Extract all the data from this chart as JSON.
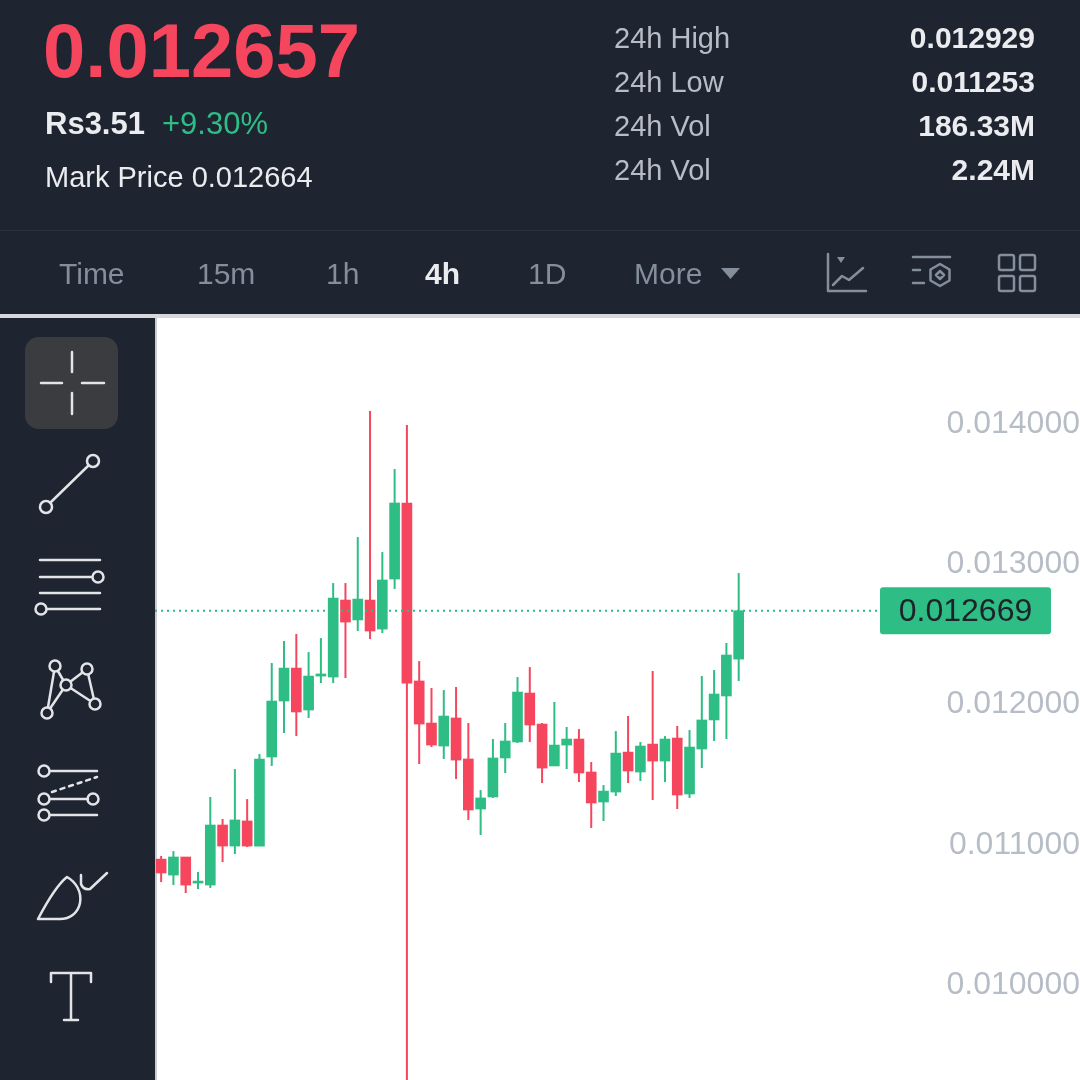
{
  "chart_data": {
    "type": "candlestick",
    "title": "0.012657",
    "annotations": [
      "Rs3.51",
      "+9.30%",
      "Mark Price 0.012664",
      "24h High",
      "0.012929",
      "24h Low",
      "0.011253",
      "24h Vol",
      "186.33M",
      "24h Vol",
      "2.24M",
      "Time",
      "15m",
      "1h",
      "4h",
      "1D",
      "More"
    ],
    "categories": [
      null,
      null,
      null,
      null,
      null,
      null,
      null,
      null,
      null,
      null,
      null,
      null,
      null,
      null,
      null,
      null,
      null,
      null,
      null,
      null,
      null,
      null,
      null,
      null,
      null,
      null,
      null,
      null,
      null,
      null,
      null,
      null,
      null,
      null,
      null,
      null,
      null,
      null,
      null,
      null,
      null,
      null,
      null,
      null,
      null,
      null,
      null,
      null,
      null,
      null,
      null,
      null,
      null,
      null,
      null,
      null,
      null,
      null,
      null
    ],
    "ohlc": [
      [
        0.010898,
        0.01092,
        0.010734,
        0.010799
      ],
      [
        0.010784,
        0.010955,
        0.010713,
        0.010913
      ],
      [
        0.010913,
        0.010913,
        0.010656,
        0.010713
      ],
      [
        0.010727,
        0.010806,
        0.010684,
        0.010734
      ],
      [
        0.010713,
        0.011341,
        0.010692,
        0.011141
      ],
      [
        0.011141,
        0.011184,
        0.010877,
        0.010991
      ],
      [
        0.010991,
        0.01154,
        0.010934,
        0.011177
      ],
      [
        0.01117,
        0.011326,
        0.010984,
        0.010991
      ],
      [
        0.010991,
        0.011647,
        0.010991,
        0.011612
      ],
      [
        0.011626,
        0.012296,
        0.011562,
        0.012025
      ],
      [
        0.012025,
        0.012453,
        0.011797,
        0.01226
      ],
      [
        0.01226,
        0.012503,
        0.011775,
        0.011947
      ],
      [
        0.011961,
        0.012374,
        0.011904,
        0.012203
      ],
      [
        0.012203,
        0.012474,
        0.012153,
        0.012218
      ],
      [
        0.012196,
        0.012866,
        0.012153,
        0.012759
      ],
      [
        0.012745,
        0.012866,
        0.012189,
        0.012588
      ],
      [
        0.012603,
        0.013194,
        0.012524,
        0.012752
      ],
      [
        0.012745,
        0.014093,
        0.012467,
        0.012524
      ],
      [
        0.012538,
        0.013087,
        0.01251,
        0.012888
      ],
      [
        0.012895,
        0.013679,
        0.012824,
        0.013437
      ],
      [
        0.013437,
        0.013993,
        0.009323,
        0.012153
      ],
      [
        0.012168,
        0.01231,
        0.011576,
        0.011861
      ],
      [
        0.011868,
        0.012118,
        0.011697,
        0.011711
      ],
      [
        0.011704,
        0.012103,
        0.011612,
        0.011918
      ],
      [
        0.011904,
        0.012125,
        0.011469,
        0.011604
      ],
      [
        0.011612,
        0.011868,
        0.011177,
        0.011248
      ],
      [
        0.011255,
        0.01139,
        0.01107,
        0.011334
      ],
      [
        0.011341,
        0.011754,
        0.011334,
        0.011619
      ],
      [
        0.011619,
        0.011868,
        0.011512,
        0.01174
      ],
      [
        0.011733,
        0.012196,
        0.011726,
        0.012089
      ],
      [
        0.012082,
        0.012267,
        0.011733,
        0.011854
      ],
      [
        0.011861,
        0.011868,
        0.01144,
        0.011547
      ],
      [
        0.011562,
        0.012018,
        0.011562,
        0.011711
      ],
      [
        0.011711,
        0.01184,
        0.01154,
        0.011754
      ],
      [
        0.011754,
        0.011825,
        0.011447,
        0.011512
      ],
      [
        0.011519,
        0.01159,
        0.01112,
        0.011298
      ],
      [
        0.011305,
        0.011426,
        0.01117,
        0.011383
      ],
      [
        0.011376,
        0.011811,
        0.011348,
        0.011654
      ],
      [
        0.011661,
        0.011918,
        0.01144,
        0.011526
      ],
      [
        0.011519,
        0.011733,
        0.011455,
        0.011704
      ],
      [
        0.011718,
        0.012239,
        0.011319,
        0.011597
      ],
      [
        0.011597,
        0.011775,
        0.011447,
        0.011754
      ],
      [
        0.011761,
        0.011847,
        0.011255,
        0.011355
      ],
      [
        0.011362,
        0.011818,
        0.011334,
        0.011697
      ],
      [
        0.011683,
        0.012203,
        0.011547,
        0.01189
      ],
      [
        0.01189,
        0.012246,
        0.01174,
        0.012075
      ],
      [
        0.012061,
        0.012439,
        0.011754,
        0.012353
      ],
      [
        0.012324,
        0.012938,
        0.012168,
        0.012669
      ],
      null,
      null,
      null,
      null,
      null,
      null,
      null,
      null,
      null,
      null,
      null
    ],
    "colors": [
      "#f6465d",
      "#2ebd85",
      "#f6465d",
      "#2ebd85",
      "#2ebd85",
      "#f6465d",
      "#2ebd85",
      "#f6465d",
      "#2ebd85",
      "#2ebd85",
      "#2ebd85",
      "#f6465d",
      "#2ebd85",
      "#2ebd85",
      "#2ebd85",
      "#f6465d",
      "#2ebd85",
      "#f6465d",
      "#2ebd85",
      "#2ebd85",
      "#f6465d",
      "#f6465d",
      "#f6465d",
      "#2ebd85",
      "#f6465d",
      "#f6465d",
      "#2ebd85",
      "#2ebd85",
      "#2ebd85",
      "#2ebd85",
      "#f6465d",
      "#f6465d",
      "#2ebd85",
      "#2ebd85",
      "#f6465d",
      "#f6465d",
      "#2ebd85",
      "#2ebd85",
      "#f6465d",
      "#2ebd85",
      "#f6465d",
      "#2ebd85",
      "#f6465d",
      "#2ebd85",
      "#2ebd85",
      "#2ebd85",
      "#2ebd85",
      "#2ebd85",
      null,
      null,
      null,
      null,
      null,
      null,
      null,
      null,
      null,
      null,
      null
    ],
    "ylim": [
      0.009323,
      0.014756
    ],
    "yticks": [
      {
        "value": 0.01,
        "label": "0.010000"
      },
      {
        "value": 0.011,
        "label": "0.011000"
      },
      {
        "value": 0.012,
        "label": "0.012000"
      },
      {
        "value": 0.013,
        "label": "0.013000"
      },
      {
        "value": 0.014,
        "label": "0.014000"
      }
    ],
    "tick_labels": "y",
    "ref_lines": [
      {
        "axis": "y",
        "value": 0.012669,
        "label": "0.012669",
        "color": "#2ebd85",
        "line_style": "dotted"
      }
    ]
  }
}
